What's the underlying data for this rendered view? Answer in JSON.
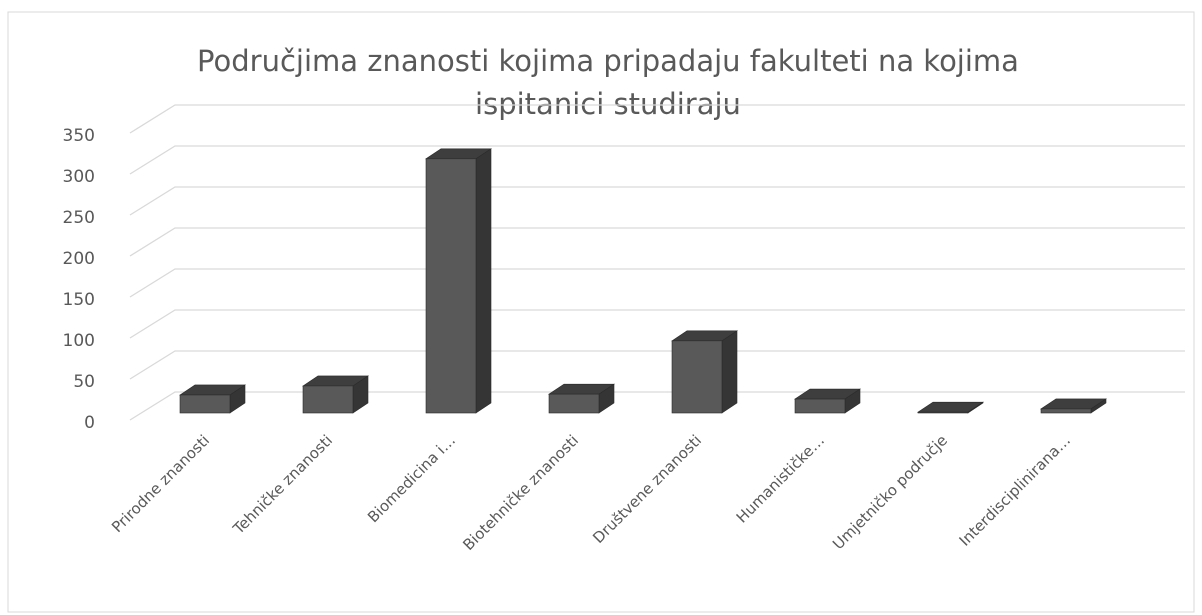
{
  "chart_data": {
    "type": "bar3d",
    "title": [
      "Područjima znanosti kojima pripadaju fakulteti na kojima",
      "ispitanici studiraju"
    ],
    "categories": [
      "Prirodne znanosti",
      "Tehničke znanosti",
      "Biomedicina i…",
      "Biotehničke znanosti",
      "Društvene znanosti",
      "Humanističke…",
      "Umjetničko područje",
      "Interdisciplinirana…"
    ],
    "values": [
      22,
      33,
      310,
      23,
      88,
      17,
      1,
      5
    ],
    "color": "#595959",
    "ylim": [
      0,
      350
    ],
    "yticks": [
      0,
      50,
      100,
      150,
      200,
      250,
      300,
      350
    ],
    "grid": true
  }
}
